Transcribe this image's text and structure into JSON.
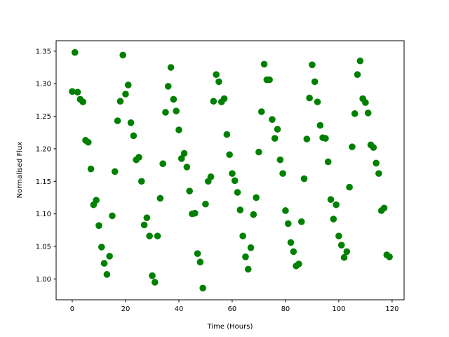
{
  "chart_data": {
    "type": "scatter",
    "title": "",
    "xlabel": "Time (Hours)",
    "ylabel": "Normalised Flux",
    "xlim": [
      -6.05,
      124.5
    ],
    "ylim": [
      0.968,
      1.366
    ],
    "xticks": [
      0,
      20,
      40,
      60,
      80,
      100,
      120
    ],
    "xtick_labels": [
      "0",
      "20",
      "40",
      "60",
      "80",
      "100",
      "120"
    ],
    "yticks": [
      1.0,
      1.05,
      1.1,
      1.15,
      1.2,
      1.25,
      1.3,
      1.35
    ],
    "ytick_labels": [
      "1.00",
      "1.05",
      "1.10",
      "1.15",
      "1.20",
      "1.25",
      "1.30",
      "1.35"
    ],
    "grid": false,
    "marker_color": "#008000",
    "x": [
      0,
      1,
      2,
      3,
      4,
      5,
      6,
      7,
      8,
      9,
      10,
      11,
      12,
      13,
      14,
      15,
      16,
      17,
      18,
      19,
      20,
      21,
      22,
      23,
      24,
      25,
      26,
      27,
      28,
      29,
      30,
      31,
      32,
      33,
      34,
      35,
      36,
      37,
      38,
      39,
      40,
      41,
      42,
      43,
      44,
      45,
      46,
      47,
      48,
      49,
      50,
      51,
      52,
      53,
      54,
      55,
      56,
      57,
      58,
      59,
      60,
      61,
      62,
      63,
      64,
      65,
      66,
      67,
      68,
      69,
      70,
      71,
      72,
      73,
      74,
      75,
      76,
      77,
      78,
      79,
      80,
      81,
      82,
      83,
      84,
      85,
      86,
      87,
      88,
      89,
      90,
      91,
      92,
      93,
      94,
      95,
      96,
      97,
      98,
      99,
      100,
      101,
      102,
      103,
      104,
      105,
      106,
      107,
      108,
      109,
      110,
      111,
      112,
      113,
      114,
      115,
      116,
      117,
      118,
      119
    ],
    "y": [
      1.288,
      1.348,
      1.287,
      1.276,
      1.272,
      1.213,
      1.21,
      1.169,
      1.114,
      1.121,
      1.082,
      1.049,
      1.024,
      1.007,
      1.035,
      1.097,
      1.165,
      1.243,
      1.273,
      1.344,
      1.284,
      1.298,
      1.24,
      1.22,
      1.183,
      1.187,
      1.15,
      1.083,
      1.094,
      1.066,
      1.005,
      0.995,
      1.066,
      1.124,
      1.177,
      1.256,
      1.296,
      1.325,
      1.276,
      1.258,
      1.229,
      1.185,
      1.193,
      1.172,
      1.135,
      1.1,
      1.101,
      1.039,
      1.026,
      0.986,
      1.115,
      1.15,
      1.157,
      1.273,
      1.314,
      1.303,
      1.272,
      1.277,
      1.222,
      1.191,
      1.162,
      1.151,
      1.133,
      1.106,
      1.066,
      1.034,
      1.015,
      1.048,
      1.099,
      1.125,
      1.195,
      1.257,
      1.33,
      1.306,
      1.306,
      1.245,
      1.216,
      1.23,
      1.183,
      1.162,
      1.105,
      1.085,
      1.056,
      1.042,
      1.02,
      1.023,
      1.088,
      1.154,
      1.215,
      1.278,
      1.329,
      1.303,
      1.272,
      1.236,
      1.217,
      1.216,
      1.18,
      1.122,
      1.092,
      1.114,
      1.066,
      1.052,
      1.033,
      1.042,
      1.141,
      1.203,
      1.254,
      1.314,
      1.335,
      1.277,
      1.271,
      1.255,
      1.206,
      1.202,
      1.178,
      1.162,
      1.105,
      1.109,
      1.037,
      1.034
    ]
  }
}
